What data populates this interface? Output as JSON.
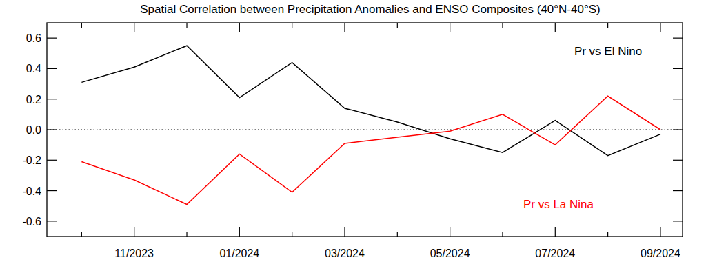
{
  "chart_data": {
    "type": "line",
    "title": "Spatial Correlation between Precipitation Anomalies and ENSO Composites (40°N-40°S)",
    "categories": [
      null,
      "11/2023",
      null,
      "01/2024",
      null,
      "03/2024",
      null,
      "05/2024",
      null,
      "07/2024",
      null,
      "09/2024"
    ],
    "series": [
      {
        "name": "Pr vs El Nino",
        "color": "#000000",
        "values": [
          0.31,
          0.41,
          0.55,
          0.21,
          0.44,
          0.14,
          0.05,
          -0.06,
          -0.15,
          0.06,
          -0.17,
          -0.03
        ]
      },
      {
        "name": "Pr vs La Nina",
        "color": "#ff0000",
        "values": [
          -0.21,
          -0.33,
          -0.49,
          -0.16,
          -0.41,
          -0.09,
          -0.05,
          -0.01,
          0.1,
          -0.1,
          0.22,
          0.0
        ]
      }
    ],
    "ylim": [
      -0.7,
      0.7
    ],
    "yticks": [
      -0.6,
      -0.4,
      -0.2,
      {
        "value": 0,
        "label": "0.0"
      },
      0.2,
      0.4,
      0.6
    ],
    "grid": false
  }
}
